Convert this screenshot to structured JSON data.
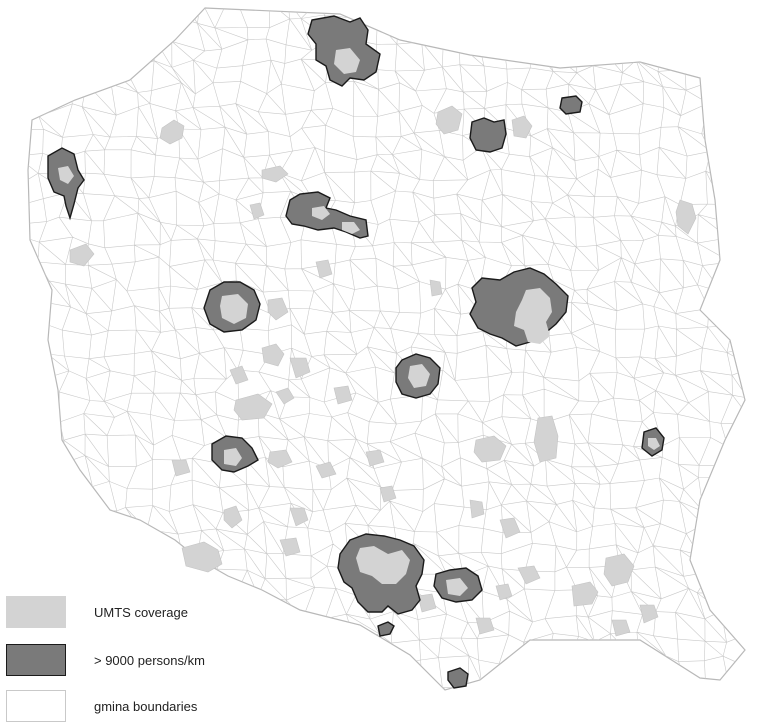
{
  "map": {
    "colors": {
      "background": "#ffffff",
      "gmina_line": "#c9c9c9",
      "umts": "#d3d3d3",
      "dense": "#7a7a7a",
      "dense_outline": "#1a1a1a"
    }
  },
  "legend": {
    "items": [
      {
        "key": "umts",
        "label": "UMTS coverage",
        "color": "#d3d3d3",
        "border": "#d3d3d3"
      },
      {
        "key": "dense",
        "label": "> 9000 persons/km",
        "color": "#7a7a7a",
        "border": "#1a1a1a"
      },
      {
        "key": "gmina",
        "label": "gmina boundaries",
        "color": "#ffffff",
        "border": "#c9c9c9"
      }
    ]
  }
}
